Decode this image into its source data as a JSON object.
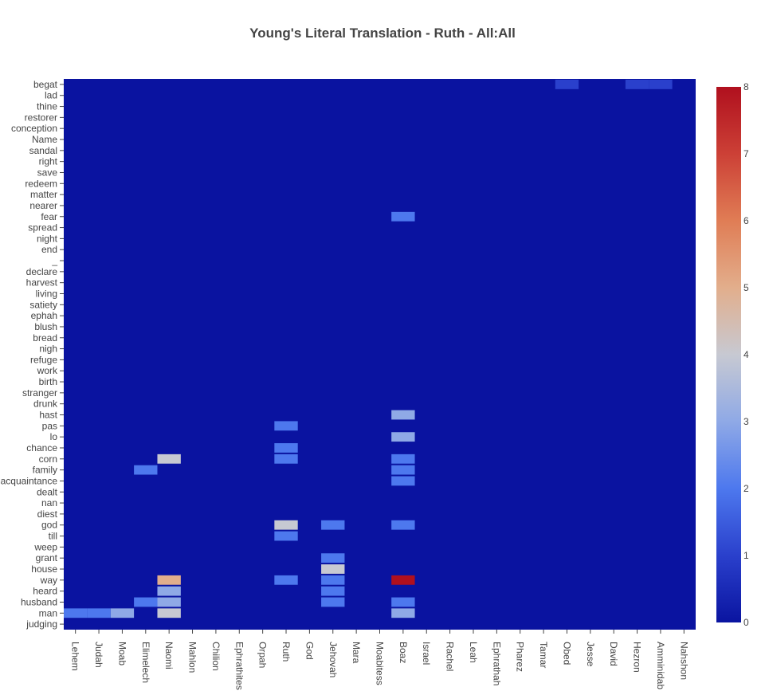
{
  "chart_data": {
    "type": "heatmap",
    "title": "Young's Literal Translation - Ruth - All:All",
    "x_categories": [
      "Lehem",
      "Judah",
      "Moab",
      "Elimelech",
      "Naomi",
      "Mahlon",
      "Chilion",
      "Ephrathites",
      "Orpah",
      "Ruth",
      "God",
      "Jehovah",
      "Mara",
      "Moabitess",
      "Boaz",
      "Israel",
      "Rachel",
      "Leah",
      "Ephrathah",
      "Pharez",
      "Tamar",
      "Obed",
      "Jesse",
      "David",
      "Hezron",
      "Amminidab",
      "Nahshon"
    ],
    "y_categories_top_to_bottom": [
      "begat",
      "lad",
      "thine",
      "restorer",
      "conception",
      "Name",
      "sandal",
      "right",
      "save",
      "redeem",
      "matter",
      "nearer",
      "fear",
      "spread",
      "night",
      "end",
      "_",
      "declare",
      "harvest",
      "living",
      "satiety",
      "ephah",
      "blush",
      "bread",
      "nigh",
      "refuge",
      "work",
      "birth",
      "stranger",
      "drunk",
      "hast",
      "pas",
      "lo",
      "chance",
      "corn",
      "family",
      "acquaintance",
      "dealt",
      "nan",
      "diest",
      "god",
      "till",
      "weep",
      "grant",
      "house",
      "way",
      "heard",
      "husband",
      "man",
      "judging"
    ],
    "z_range": [
      0,
      8
    ],
    "colorscale": "coolwarm (blue to red)",
    "colorbar_ticks": [
      0,
      1,
      2,
      3,
      4,
      5,
      6,
      7,
      8
    ],
    "highlighted_values": [
      {
        "x": "Boaz",
        "y": "way",
        "z": 8
      },
      {
        "x": "Naomi",
        "y": "way",
        "z": 5
      },
      {
        "x": "Naomi",
        "y": "man",
        "z": 4
      },
      {
        "x": "Naomi",
        "y": "corn",
        "z": 4
      },
      {
        "x": "Jehovah",
        "y": "house",
        "z": 4
      },
      {
        "x": "Ruth",
        "y": "god",
        "z": 4
      },
      {
        "x": "Boaz",
        "y": "man",
        "z": 3
      },
      {
        "x": "Boaz",
        "y": "lo",
        "z": 3
      },
      {
        "x": "Boaz",
        "y": "hast",
        "z": 3
      },
      {
        "x": "Boaz",
        "y": "fear",
        "z": 2
      },
      {
        "x": "Ruth",
        "y": "chance",
        "z": 2
      },
      {
        "x": "Ruth",
        "y": "corn",
        "z": 2
      },
      {
        "x": "Moab",
        "y": "man",
        "z": 3
      },
      {
        "x": "Naomi",
        "y": "heard",
        "z": 3
      },
      {
        "x": "Naomi",
        "y": "husband",
        "z": 3
      },
      {
        "x": "Elimelech",
        "y": "husband",
        "z": 2
      },
      {
        "x": "Elimelech",
        "y": "family",
        "z": 2
      },
      {
        "x": "Judah",
        "y": "man",
        "z": 2
      },
      {
        "x": "Lehem",
        "y": "man",
        "z": 2
      },
      {
        "x": "Ruth",
        "y": "till",
        "z": 2
      },
      {
        "x": "Ruth",
        "y": "way",
        "z": 2
      },
      {
        "x": "Ruth",
        "y": "pas",
        "z": 2
      },
      {
        "x": "Jehovah",
        "y": "husband",
        "z": 2
      },
      {
        "x": "Jehovah",
        "y": "way",
        "z": 2
      },
      {
        "x": "Jehovah",
        "y": "heard",
        "z": 2
      },
      {
        "x": "Jehovah",
        "y": "god",
        "z": 2
      },
      {
        "x": "Jehovah",
        "y": "grant",
        "z": 2
      },
      {
        "x": "Boaz",
        "y": "husband",
        "z": 2
      },
      {
        "x": "Boaz",
        "y": "corn",
        "z": 2
      },
      {
        "x": "Boaz",
        "y": "acquaintance",
        "z": 2
      },
      {
        "x": "Boaz",
        "y": "god",
        "z": 2
      },
      {
        "x": "Boaz",
        "y": "family",
        "z": 2
      },
      {
        "x": "Obed",
        "y": "begat",
        "z": 1
      },
      {
        "x": "Hezron",
        "y": "begat",
        "z": 1
      },
      {
        "x": "Amminidab",
        "y": "begat",
        "z": 1
      }
    ]
  }
}
